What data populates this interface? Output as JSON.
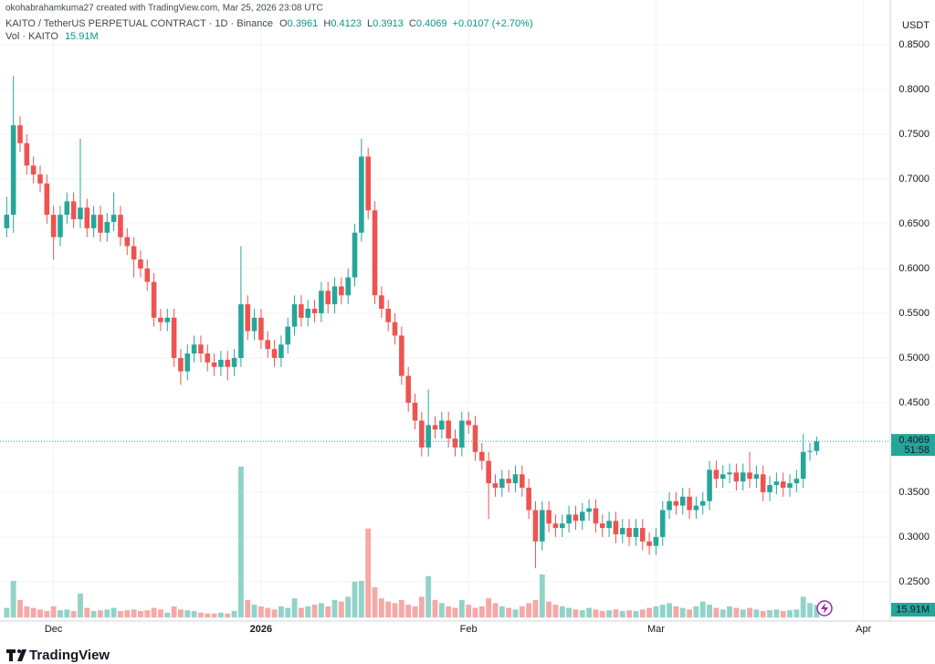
{
  "chart_data": {
    "type": "candlestick",
    "credit": "okohabrahamkuma27 created with TradingView.com, Mar 25, 2026 23:08 UTC",
    "title": "KAITO / TetherUS PERPETUAL CONTRACT · 1D · Binance",
    "ohlc_keys": [
      "O",
      "H",
      "L",
      "C"
    ],
    "change": "+0.0107 (+2.70%)",
    "axis_unit": "USDT",
    "countdown": "51:58",
    "brand": "TradingView",
    "up_color": "#26a69a",
    "down_color": "#ef5350",
    "grid": true,
    "xlim": [
      -1,
      132
    ],
    "xticks": [
      {
        "value": 7,
        "label": "Dec"
      },
      {
        "value": 38,
        "label": "2026"
      },
      {
        "value": 69,
        "label": "Feb"
      },
      {
        "value": 97,
        "label": "Mar"
      },
      {
        "value": 128,
        "label": "Apr"
      }
    ],
    "ylim": [
      0.206,
      0.9
    ],
    "yticks": [
      {
        "value": 0.25,
        "label": "0.2500"
      },
      {
        "value": 0.3,
        "label": "0.3000"
      },
      {
        "value": 0.35,
        "label": "0.3500"
      },
      {
        "value": 0.4,
        "label": "0.4000"
      },
      {
        "value": 0.45,
        "label": "0.4500"
      },
      {
        "value": 0.5,
        "label": "0.5000"
      },
      {
        "value": 0.55,
        "label": "0.5500"
      },
      {
        "value": 0.6,
        "label": "0.6000"
      },
      {
        "value": 0.65,
        "label": "0.6500"
      },
      {
        "value": 0.7,
        "label": "0.7000"
      },
      {
        "value": 0.75,
        "label": "0.7500"
      },
      {
        "value": 0.8,
        "label": "0.8000"
      },
      {
        "value": 0.85,
        "label": "0.8500"
      }
    ],
    "open": [
      0.645,
      0.66,
      0.76,
      0.74,
      0.715,
      0.705,
      0.695,
      0.66,
      0.635,
      0.66,
      0.675,
      0.655,
      0.668,
      0.645,
      0.66,
      0.64,
      0.652,
      0.66,
      0.635,
      0.625,
      0.61,
      0.6,
      0.585,
      0.545,
      0.54,
      0.545,
      0.5,
      0.485,
      0.505,
      0.515,
      0.505,
      0.495,
      0.49,
      0.498,
      0.49,
      0.5,
      0.56,
      0.53,
      0.545,
      0.52,
      0.51,
      0.5,
      0.515,
      0.535,
      0.56,
      0.545,
      0.555,
      0.55,
      0.575,
      0.56,
      0.58,
      0.57,
      0.59,
      0.64,
      0.725,
      0.665,
      0.57,
      0.555,
      0.54,
      0.525,
      0.48,
      0.45,
      0.43,
      0.4,
      0.425,
      0.42,
      0.43,
      0.41,
      0.4,
      0.43,
      0.425,
      0.395,
      0.385,
      0.36,
      0.355,
      0.365,
      0.36,
      0.37,
      0.355,
      0.33,
      0.295,
      0.33,
      0.315,
      0.31,
      0.315,
      0.325,
      0.318,
      0.328,
      0.332,
      0.315,
      0.31,
      0.318,
      0.303,
      0.31,
      0.3,
      0.31,
      0.295,
      0.29,
      0.3,
      0.33,
      0.34,
      0.335,
      0.345,
      0.33,
      0.335,
      0.34,
      0.375,
      0.365,
      0.37,
      0.372,
      0.362,
      0.372,
      0.365,
      0.37,
      0.35,
      0.358,
      0.362,
      0.355,
      0.36,
      0.365,
      0.395,
      0.3961
    ],
    "high": [
      0.68,
      0.815,
      0.77,
      0.75,
      0.725,
      0.715,
      0.705,
      0.67,
      0.67,
      0.685,
      0.685,
      0.745,
      0.678,
      0.67,
      0.67,
      0.662,
      0.685,
      0.67,
      0.645,
      0.635,
      0.62,
      0.61,
      0.595,
      0.555,
      0.555,
      0.555,
      0.51,
      0.515,
      0.525,
      0.525,
      0.515,
      0.505,
      0.508,
      0.508,
      0.51,
      0.625,
      0.57,
      0.555,
      0.555,
      0.53,
      0.52,
      0.525,
      0.545,
      0.57,
      0.57,
      0.565,
      0.565,
      0.585,
      0.585,
      0.59,
      0.59,
      0.6,
      0.65,
      0.745,
      0.735,
      0.675,
      0.58,
      0.565,
      0.55,
      0.535,
      0.49,
      0.46,
      0.44,
      0.465,
      0.435,
      0.44,
      0.44,
      0.42,
      0.44,
      0.44,
      0.435,
      0.405,
      0.395,
      0.37,
      0.375,
      0.375,
      0.38,
      0.38,
      0.365,
      0.34,
      0.34,
      0.34,
      0.325,
      0.325,
      0.335,
      0.335,
      0.338,
      0.342,
      0.342,
      0.325,
      0.328,
      0.328,
      0.32,
      0.32,
      0.32,
      0.32,
      0.305,
      0.31,
      0.34,
      0.35,
      0.35,
      0.355,
      0.355,
      0.345,
      0.35,
      0.385,
      0.385,
      0.38,
      0.382,
      0.382,
      0.382,
      0.395,
      0.38,
      0.38,
      0.368,
      0.372,
      0.372,
      0.37,
      0.375,
      0.415,
      0.405,
      0.4123
    ],
    "low": [
      0.635,
      0.64,
      0.73,
      0.705,
      0.695,
      0.685,
      0.65,
      0.61,
      0.625,
      0.65,
      0.645,
      0.645,
      0.635,
      0.635,
      0.63,
      0.63,
      0.642,
      0.625,
      0.615,
      0.59,
      0.59,
      0.575,
      0.535,
      0.53,
      0.53,
      0.49,
      0.47,
      0.475,
      0.495,
      0.495,
      0.485,
      0.48,
      0.48,
      0.475,
      0.48,
      0.49,
      0.52,
      0.52,
      0.51,
      0.5,
      0.49,
      0.49,
      0.505,
      0.525,
      0.535,
      0.535,
      0.54,
      0.54,
      0.55,
      0.55,
      0.56,
      0.56,
      0.58,
      0.63,
      0.655,
      0.56,
      0.545,
      0.53,
      0.515,
      0.47,
      0.44,
      0.42,
      0.39,
      0.39,
      0.41,
      0.41,
      0.4,
      0.39,
      0.39,
      0.415,
      0.385,
      0.375,
      0.32,
      0.345,
      0.345,
      0.35,
      0.35,
      0.345,
      0.32,
      0.265,
      0.285,
      0.305,
      0.3,
      0.3,
      0.305,
      0.308,
      0.308,
      0.318,
      0.305,
      0.3,
      0.3,
      0.293,
      0.293,
      0.29,
      0.29,
      0.285,
      0.28,
      0.28,
      0.29,
      0.32,
      0.325,
      0.325,
      0.32,
      0.32,
      0.325,
      0.33,
      0.355,
      0.355,
      0.36,
      0.352,
      0.352,
      0.355,
      0.355,
      0.34,
      0.34,
      0.348,
      0.345,
      0.345,
      0.35,
      0.355,
      0.385,
      0.3913
    ],
    "close": [
      0.66,
      0.76,
      0.74,
      0.715,
      0.705,
      0.695,
      0.66,
      0.635,
      0.66,
      0.675,
      0.655,
      0.668,
      0.645,
      0.66,
      0.64,
      0.652,
      0.66,
      0.635,
      0.625,
      0.61,
      0.6,
      0.585,
      0.545,
      0.54,
      0.545,
      0.5,
      0.485,
      0.505,
      0.515,
      0.505,
      0.495,
      0.49,
      0.498,
      0.49,
      0.5,
      0.56,
      0.53,
      0.545,
      0.52,
      0.51,
      0.5,
      0.515,
      0.535,
      0.56,
      0.545,
      0.555,
      0.55,
      0.575,
      0.56,
      0.58,
      0.57,
      0.59,
      0.64,
      0.725,
      0.665,
      0.57,
      0.555,
      0.54,
      0.525,
      0.48,
      0.45,
      0.43,
      0.4,
      0.425,
      0.42,
      0.43,
      0.41,
      0.4,
      0.43,
      0.425,
      0.395,
      0.385,
      0.36,
      0.355,
      0.365,
      0.36,
      0.37,
      0.355,
      0.33,
      0.295,
      0.33,
      0.315,
      0.31,
      0.315,
      0.325,
      0.318,
      0.328,
      0.332,
      0.315,
      0.31,
      0.318,
      0.303,
      0.31,
      0.3,
      0.31,
      0.295,
      0.29,
      0.3,
      0.33,
      0.34,
      0.335,
      0.345,
      0.33,
      0.335,
      0.34,
      0.375,
      0.365,
      0.37,
      0.372,
      0.362,
      0.372,
      0.365,
      0.37,
      0.35,
      0.358,
      0.362,
      0.355,
      0.36,
      0.365,
      0.395,
      0.3961,
      0.4069
    ],
    "volume": {
      "name": "Vol · KAITO",
      "last_label": "15.91M",
      "up_color": "#92d3c9",
      "down_color": "#f5a9a7",
      "ylim": [
        0,
        230
      ],
      "values": [
        12,
        46,
        22,
        14,
        12,
        10,
        8,
        14,
        9,
        10,
        8,
        30,
        12,
        8,
        9,
        10,
        12,
        8,
        9,
        10,
        8,
        9,
        12,
        10,
        6,
        14,
        10,
        9,
        8,
        6,
        5,
        5,
        6,
        5,
        8,
        190,
        22,
        16,
        14,
        12,
        10,
        14,
        12,
        24,
        12,
        14,
        16,
        18,
        14,
        22,
        20,
        26,
        45,
        46,
        112,
        38,
        24,
        20,
        18,
        22,
        16,
        14,
        26,
        52,
        22,
        18,
        14,
        12,
        22,
        16,
        12,
        14,
        24,
        18,
        14,
        12,
        10,
        14,
        18,
        22,
        54,
        20,
        16,
        14,
        12,
        10,
        9,
        12,
        10,
        8,
        9,
        10,
        8,
        9,
        8,
        10,
        12,
        14,
        16,
        18,
        14,
        12,
        10,
        14,
        20,
        16,
        12,
        10,
        14,
        12,
        10,
        12,
        10,
        8,
        9,
        10,
        8,
        9,
        10,
        26,
        18,
        15.91
      ]
    }
  }
}
